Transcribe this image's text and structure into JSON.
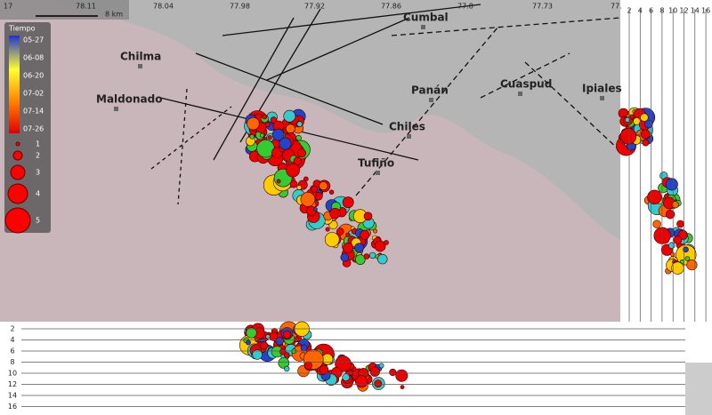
{
  "map": {
    "top_axis": [
      "17",
      "78.11",
      "78.04",
      "77.98",
      "77.92",
      "77.86",
      "77.8",
      "77.73",
      "77."
    ],
    "scale_label": "8 km",
    "places": [
      "Chilma",
      "Maldonado",
      "Cumbal",
      "Panán",
      "Chiles",
      "Tufiño",
      "Cuaspud",
      "Ipiales"
    ]
  },
  "legend": {
    "title": "Tiempo",
    "dates": [
      "05-27",
      "06-08",
      "06-20",
      "07-02",
      "07-14",
      "07-26"
    ],
    "magnitudes": [
      "1",
      "2",
      "3",
      "4",
      "5"
    ]
  },
  "side_section": {
    "depth_ticks": [
      "2",
      "4",
      "6",
      "8",
      "10",
      "12",
      "14",
      "16"
    ]
  },
  "bottom_section": {
    "depth_ticks": [
      "2",
      "4",
      "6",
      "8",
      "10",
      "12",
      "14",
      "16"
    ]
  }
}
